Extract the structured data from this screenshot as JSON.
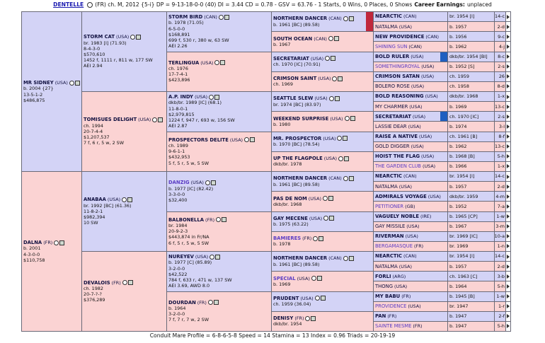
{
  "header": {
    "horse": "DENTELLE",
    "details": "(FR) ch. M, 2012 {5-i} DP = 9-13-18-0-0 (40) DI = 3.44 CD = 0.78 - GSV = 63.76 - 1 Starts, 0 Wins, 0 Places, 0 Shows",
    "earnings_label": "Career Earnings:",
    "earnings": "unplaced"
  },
  "pedigree": {
    "gen1": [
      {
        "name": "MR SIDNEY",
        "origin": "(USA)",
        "lines": [
          "b. 2004 {27}",
          "13-5-1-2",
          "$486,875"
        ]
      },
      {
        "name": "DALNA",
        "origin": "(FR)",
        "lines": [
          "b. 2001",
          "4-3-0-0",
          "$110,758"
        ]
      }
    ],
    "gen2": [
      {
        "name": "STORM CAT",
        "origin": "(USA)",
        "lines": [
          "br. 1983 [I] (71.93)",
          "8-4-3-0",
          "$570,610",
          "1452 f, 1111 r, 811 w, 177 SW",
          "AEI 2.94"
        ]
      },
      {
        "name": "TOMISUES DELIGHT",
        "origin": "(USA)",
        "lines": [
          "ch. 1994",
          "20-7-4-4",
          "$1,207,537",
          "7 f, 6 r, 5 w, 2 SW"
        ]
      },
      {
        "name": "ANABAA",
        "origin": "(USA)",
        "lines": [
          "br. 1992 [BC] (61.36)",
          "11-8-2-1",
          "$982,394",
          "10 SW"
        ]
      },
      {
        "name": "DEVALOIS",
        "origin": "(FR)",
        "lines": [
          "ch. 1982",
          "20-7-?-?",
          "$376,289"
        ]
      }
    ],
    "gen3": [
      {
        "name": "STORM BIRD",
        "origin": "(CAN)",
        "lines": [
          "b. 1978 (71.05)",
          "6-5-0-0",
          "$168,891",
          "699 f, 530 r, 380 w, 63 SW",
          "AEI 2.26"
        ]
      },
      {
        "name": "TERLINGUA",
        "origin": "(USA)",
        "lines": [
          "ch. 1976",
          "17-7-4-1",
          "$423,896"
        ]
      },
      {
        "name": "A.P. INDY",
        "origin": "(USA)",
        "lines": [
          "dkb/br. 1989 [IC] (68.1)",
          "11-8-0-1",
          "$2,979,815",
          "1224 f, 947 r, 693 w, 156 SW",
          "AEI 2.87"
        ]
      },
      {
        "name": "PROSPECTORS DELITE",
        "origin": "(USA)",
        "lines": [
          "ch. 1989",
          "9-6-1-1",
          "$432,953",
          "5 f, 5 r, 5 w, 5 SW"
        ]
      },
      {
        "name": "DANZIG",
        "origin": "(USA)",
        "name_color": "#5b3cc4",
        "lines": [
          "b. 1977 [IC] (82.42)",
          "3-3-0-0",
          "$32,400"
        ]
      },
      {
        "name": "BALBONELLA",
        "origin": "(FR)",
        "lines": [
          "br. 1984",
          "20-9-2-3",
          "$443,874 in Fr/NA",
          "6 f, 5 r, 5 w, 5 SW"
        ]
      },
      {
        "name": "NUREYEV",
        "origin": "(USA)",
        "lines": [
          "b. 1977 [C] (85.89)",
          "3-2-0-0",
          "$42,522",
          "784 f, 633 r, 471 w, 137 SW",
          "AEI 3.69, AWD 8.0"
        ]
      },
      {
        "name": "DOURDAN",
        "origin": "(FR)",
        "lines": [
          "b. 1964",
          "3-2-0-0",
          "7 f, 7 r, 7 w, 2 SW"
        ]
      }
    ],
    "gen4": [
      {
        "name": "NORTHERN DANCER",
        "origin": "(CAN)",
        "highlight": "#c0283c",
        "lines": [
          "b. 1961 [BC] (89.58)"
        ]
      },
      {
        "name": "SOUTH OCEAN",
        "origin": "(CAN)",
        "lines": [
          "b. 1967"
        ]
      },
      {
        "name": "SECRETARIAT",
        "origin": "(USA)",
        "lines": [
          "ch. 1970 [IC] (70.91)"
        ]
      },
      {
        "name": "CRIMSON SAINT",
        "origin": "(USA)",
        "lines": [
          "ch. 1969"
        ]
      },
      {
        "name": "SEATTLE SLEW",
        "origin": "(USA)",
        "lines": [
          "br. 1974 [BC] (83.97)"
        ]
      },
      {
        "name": "WEEKEND SURPRISE",
        "origin": "(USA)",
        "lines": [
          "b. 1980"
        ]
      },
      {
        "name": "MR. PROSPECTOR",
        "origin": "(USA)",
        "lines": [
          "b. 1970 [BC] (78.54)"
        ]
      },
      {
        "name": "UP THE FLAGPOLE",
        "origin": "(USA)",
        "lines": [
          "dkb/br. 1978"
        ]
      },
      {
        "name": "NORTHERN DANCER",
        "origin": "(CAN)",
        "lines": [
          "b. 1961 [BC] (89.58)"
        ]
      },
      {
        "name": "PAS DE NOM",
        "origin": "(USA)",
        "lines": [
          "dkb/br. 1968"
        ]
      },
      {
        "name": "GAY MECENE",
        "origin": "(USA)",
        "lines": [
          "b. 1975 (63.22)"
        ]
      },
      {
        "name": "BAMIERES",
        "origin": "(FR)",
        "name_color": "#5b3cc4",
        "lines": [
          "b. 1978"
        ]
      },
      {
        "name": "NORTHERN DANCER",
        "origin": "(CAN)",
        "lines": [
          "b. 1961 [BC] (89.58)"
        ]
      },
      {
        "name": "SPECIAL",
        "origin": "(USA)",
        "name_color": "#5b3cc4",
        "lines": [
          "b. 1969"
        ]
      },
      {
        "name": "PRUDENT",
        "origin": "(USA)",
        "lines": [
          "ch. 1959 (36.04)"
        ]
      },
      {
        "name": "DENISY",
        "origin": "(FR)",
        "lines": [
          "dkb/br. 1954"
        ]
      }
    ],
    "gen5": [
      {
        "name": "NEARCTIC",
        "origin": "(CAN)",
        "birth": "br. 1954 [I]",
        "code": "14-c"
      },
      {
        "name": "NATALMA",
        "origin": "(USA)",
        "birth": "b. 1957",
        "code": "2-d"
      },
      {
        "name": "NEW PROVIDENCE",
        "origin": "(CAN)",
        "birth": "b. 1956",
        "code": "9-c"
      },
      {
        "name": "SHINING SUN",
        "origin": "(CAN)",
        "birth": "b. 1962",
        "code": "4-j",
        "name_color": "#5b3cc4"
      },
      {
        "name": "BOLD RULER",
        "origin": "(USA)",
        "birth": "dkb/br. 1954 [BI]",
        "code": "8-c",
        "highlight": "#1f5fc0"
      },
      {
        "name": "SOMETHINGROYAL",
        "origin": "(USA)",
        "birth": "b. 1952 [S]",
        "code": "2-s",
        "name_color": "#5b3cc4"
      },
      {
        "name": "CRIMSON SATAN",
        "origin": "(USA)",
        "birth": "ch. 1959",
        "code": "26"
      },
      {
        "name": "BOLERO ROSE",
        "origin": "(USA)",
        "birth": "ch. 1958",
        "code": "8-d"
      },
      {
        "name": "BOLD REASONING",
        "origin": "(USA)",
        "birth": "dkb/br. 1968",
        "code": "1-x"
      },
      {
        "name": "MY CHARMER",
        "origin": "(USA)",
        "birth": "b. 1969",
        "code": "13-c"
      },
      {
        "name": "SECRETARIAT",
        "origin": "(USA)",
        "birth": "ch. 1970 [IC]",
        "code": "2-s",
        "highlight": "#1f5fc0"
      },
      {
        "name": "LASSIE DEAR",
        "origin": "(USA)",
        "birth": "b. 1974",
        "code": "3-l"
      },
      {
        "name": "RAISE A NATIVE",
        "origin": "(USA)",
        "birth": "ch. 1961 [B]",
        "code": "8-f"
      },
      {
        "name": "GOLD DIGGER",
        "origin": "(USA)",
        "birth": "b. 1962",
        "code": "13-c"
      },
      {
        "name": "HOIST THE FLAG",
        "origin": "(USA)",
        "birth": "b. 1968 [B]",
        "code": "5-h"
      },
      {
        "name": "THE GARDEN CLUB",
        "origin": "(USA)",
        "birth": "b. 1966",
        "code": "1-x",
        "name_color": "#5b3cc4"
      },
      {
        "name": "NEARCTIC",
        "origin": "(CAN)",
        "birth": "br. 1954 [I]",
        "code": "14-c"
      },
      {
        "name": "NATALMA",
        "origin": "(USA)",
        "birth": "b. 1957",
        "code": "2-d"
      },
      {
        "name": "ADMIRALS VOYAGE",
        "origin": "(USA)",
        "birth": "dkb/br. 1959",
        "code": "4-m"
      },
      {
        "name": "PETITIONER",
        "origin": "(GB)",
        "birth": "b. 1952",
        "code": "7-a",
        "name_color": "#5b3cc4"
      },
      {
        "name": "VAGUELY NOBLE",
        "origin": "(IRE)",
        "birth": "b. 1965 [CP]",
        "code": "1-w"
      },
      {
        "name": "GAY MISSILE",
        "origin": "(USA)",
        "birth": "b. 1967",
        "code": "3-m"
      },
      {
        "name": "RIVERMAN",
        "origin": "(USA)",
        "birth": "br. 1969 [IC]",
        "code": "10-a"
      },
      {
        "name": "BERGAMASQUE",
        "origin": "(FR)",
        "birth": "br. 1969",
        "code": "1-n",
        "name_color": "#5b3cc4"
      },
      {
        "name": "NEARCTIC",
        "origin": "(CAN)",
        "birth": "br. 1954 [I]",
        "code": "14-c"
      },
      {
        "name": "NATALMA",
        "origin": "(USA)",
        "birth": "b. 1957",
        "code": "2-d"
      },
      {
        "name": "FORLI",
        "origin": "(ARG)",
        "birth": "ch. 1963 [C]",
        "code": "3-b"
      },
      {
        "name": "THONG",
        "origin": "(USA)",
        "birth": "b. 1964",
        "code": "5-h"
      },
      {
        "name": "MY BABU",
        "origin": "(FR)",
        "birth": "b. 1945 [B]",
        "code": "1-w"
      },
      {
        "name": "PROVIDENCE",
        "origin": "(USA)",
        "birth": "br. 1947",
        "code": "1-r",
        "name_color": "#5b3cc4"
      },
      {
        "name": "PAN",
        "origin": "(FR)",
        "birth": "b. 1947",
        "code": "2-f"
      },
      {
        "name": "SAINTE MESME",
        "origin": "(FR)",
        "birth": "b. 1947",
        "code": "5-h",
        "name_color": "#5b3cc4"
      }
    ]
  },
  "footer": "Conduit Mare Profile = 6-8-6-5-8 Speed = 14 Stamina = 13 Index = 0.96 Triads = 20-19-19"
}
